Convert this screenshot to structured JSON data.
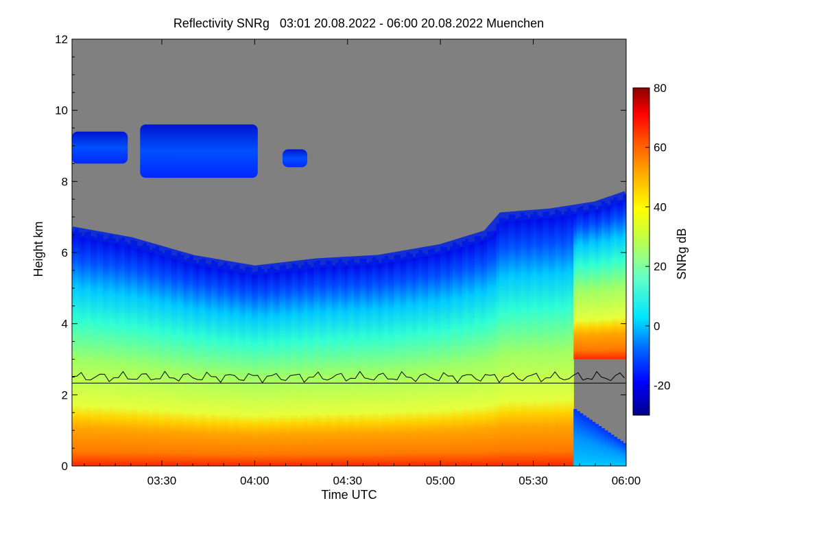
{
  "chart_data": {
    "type": "heatmap",
    "title": "Reflectivity SNRg   03:01 20.08.2022 - 06:00 20.08.2022 Muenchen",
    "xlabel": "Time UTC",
    "ylabel": "Height km",
    "xlim_minutes_utc": [
      181,
      360
    ],
    "ylim": [
      0,
      12
    ],
    "x_ticks": [
      {
        "label": "03:30",
        "minute": 210
      },
      {
        "label": "04:00",
        "minute": 240
      },
      {
        "label": "04:30",
        "minute": 270
      },
      {
        "label": "05:00",
        "minute": 300
      },
      {
        "label": "05:30",
        "minute": 330
      },
      {
        "label": "06:00",
        "minute": 360
      }
    ],
    "y_ticks": [
      "0",
      "2",
      "4",
      "6",
      "8",
      "10",
      "12"
    ],
    "colorbar": {
      "label": "SNRg dB",
      "range": [
        -30,
        80
      ],
      "ticks": [
        "-20",
        "0",
        "20",
        "40",
        "60",
        "80"
      ],
      "colors": [
        "#00008c",
        "#0000ff",
        "#0064ff",
        "#00e6ff",
        "#64ffc8",
        "#c8ff3c",
        "#ffff00",
        "#ffaa00",
        "#ff5000",
        "#ff0000",
        "#8c0000"
      ],
      "nodata_color": "#808080"
    },
    "features": {
      "cloud_top_km": [
        {
          "minute": 181,
          "value": 6.6
        },
        {
          "minute": 200,
          "value": 6.3
        },
        {
          "minute": 220,
          "value": 5.8
        },
        {
          "minute": 240,
          "value": 5.5
        },
        {
          "minute": 260,
          "value": 5.7
        },
        {
          "minute": 280,
          "value": 5.8
        },
        {
          "minute": 300,
          "value": 6.1
        },
        {
          "minute": 315,
          "value": 6.5
        },
        {
          "minute": 320,
          "value": 7.0
        },
        {
          "minute": 335,
          "value": 7.1
        },
        {
          "minute": 350,
          "value": 7.3
        },
        {
          "minute": 360,
          "value": 7.6
        }
      ],
      "upper_cloud_layers": [
        {
          "start_minute": 181,
          "end_minute": 199,
          "base_km": 8.5,
          "top_km": 9.4
        },
        {
          "start_minute": 203,
          "end_minute": 241,
          "base_km": 8.1,
          "top_km": 9.6
        },
        {
          "start_minute": 249,
          "end_minute": 257,
          "base_km": 8.4,
          "top_km": 8.9
        }
      ],
      "melting_layer_km": 2.5,
      "reference_height_km": 2.33,
      "precipitation_end_minute": 343
    }
  }
}
